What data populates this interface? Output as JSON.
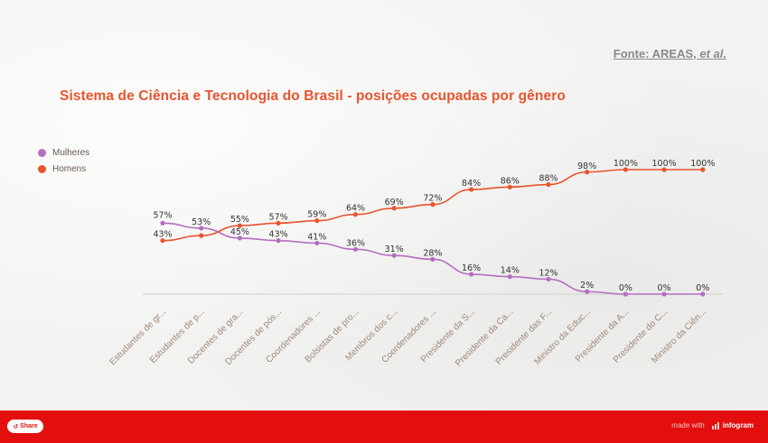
{
  "source": {
    "prefix": "Fonte: AREAS, ",
    "suffix": "et al."
  },
  "title": "Sistema de Ciência e Tecnologia do Brasil - posições ocupadas por gênero",
  "footer": {
    "share_label": "Share",
    "made_with": "made with",
    "brand": "infogram"
  },
  "colors": {
    "mulheres": "#b46ec0",
    "homens": "#e8542e",
    "accent": "#e30f0f"
  },
  "chart_data": {
    "type": "line",
    "title": "Sistema de Ciência e Tecnologia do Brasil - posições ocupadas por gênero",
    "legend_position": "top-left",
    "grid": false,
    "ylim": [
      0,
      100
    ],
    "categories": [
      "Estudantes de gr...",
      "Estudantes de p...",
      "Docentes de gra...",
      "Docentes de pós...",
      "Coordenadores ...",
      "Bolsistas de pro...",
      "Membros dos c...",
      "Coordenadores ...",
      "Presidente da S...",
      "Presidente da Ca...",
      "Presidente das F...",
      "Ministro da Educ...",
      "Presidente da A...",
      "Presidente do C...",
      "Ministro da Ciên..."
    ],
    "series": [
      {
        "name": "Mulheres",
        "color": "#b46ec0",
        "values": [
          57,
          53,
          45,
          43,
          41,
          36,
          31,
          28,
          16,
          14,
          12,
          2,
          0,
          0,
          0
        ],
        "labels": [
          "57%",
          "53%",
          "45%",
          "43%",
          "41%",
          "36%",
          "31%",
          "28%",
          "16%",
          "14%",
          "12%",
          "2%",
          "0%",
          "0%",
          "0%"
        ]
      },
      {
        "name": "Homens",
        "color": "#e8542e",
        "values": [
          43,
          47,
          55,
          57,
          59,
          64,
          69,
          72,
          84,
          86,
          88,
          98,
          100,
          100,
          100
        ],
        "labels": [
          "43%",
          "",
          "55%",
          "57%",
          "59%",
          "64%",
          "69%",
          "72%",
          "84%",
          "86%",
          "88%",
          "98%",
          "100%",
          "100%",
          "100%"
        ]
      }
    ]
  }
}
